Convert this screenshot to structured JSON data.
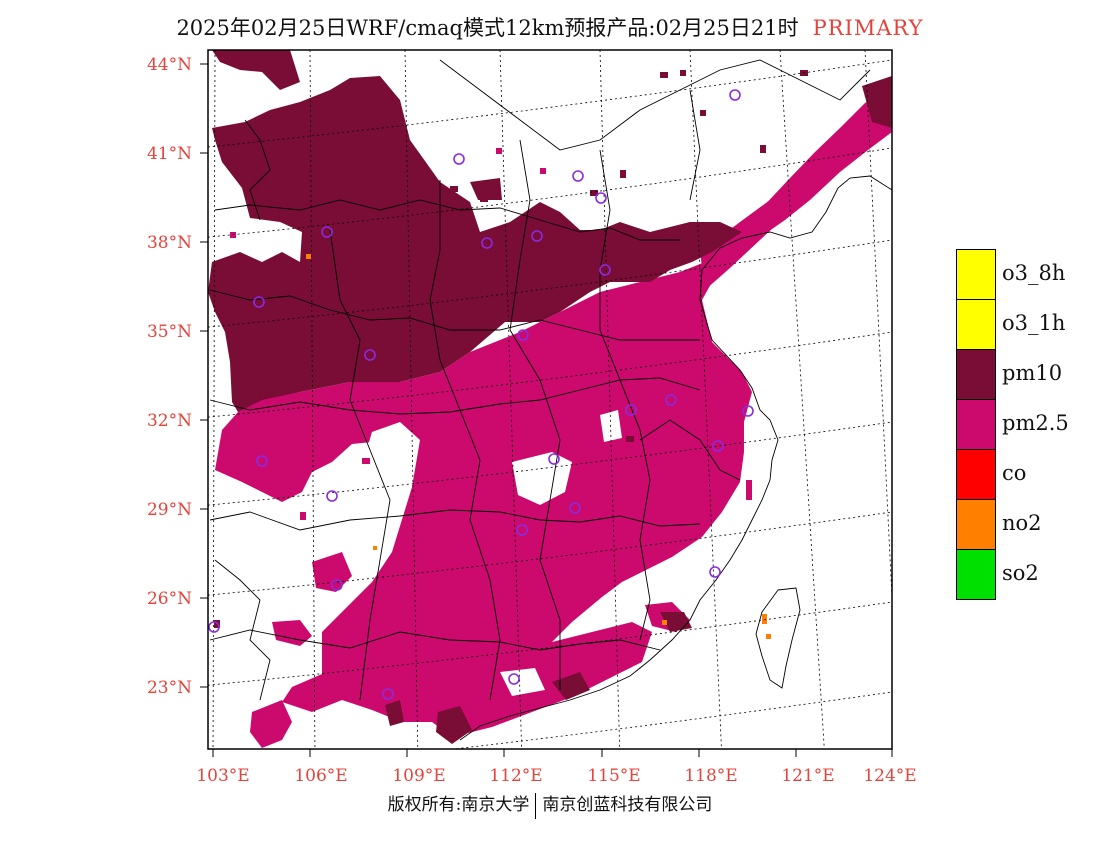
{
  "title": "2025年02月25日WRF/cmaq模式12km预报产品:02月25日21时",
  "title_tag": "PRIMARY",
  "lat_labels": [
    "44°N",
    "41°N",
    "38°N",
    "35°N",
    "32°N",
    "29°N",
    "26°N",
    "23°N"
  ],
  "lon_labels": [
    "103°E",
    "106°E",
    "109°E",
    "112°E",
    "115°E",
    "118°E",
    "121°E",
    "124°E"
  ],
  "legend": [
    {
      "label": "o3_8h",
      "color": "#ffff00"
    },
    {
      "label": "o3_1h",
      "color": "#ffff00"
    },
    {
      "label": "pm10",
      "color": "#7a0d35"
    },
    {
      "label": "pm2.5",
      "color": "#cc0a6e"
    },
    {
      "label": "co",
      "color": "#ff0000"
    },
    {
      "label": "no2",
      "color": "#ff7f00"
    },
    {
      "label": "so2",
      "color": "#00e000"
    }
  ],
  "footer_left": "版权所有:南京大学",
  "footer_right": "南京创蓝科技有限公司",
  "colors": {
    "pm10": "#7a0d35",
    "pm25": "#cc0a6e",
    "axis_label": "#e8413a",
    "city_marker": "#8a2be2",
    "no2": "#ff7f00"
  }
}
